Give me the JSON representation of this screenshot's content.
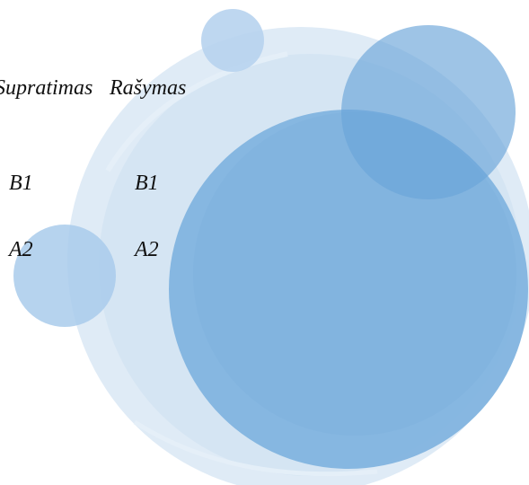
{
  "header": {
    "col1": "Supratimas",
    "col2": "Rašymas"
  },
  "rows": [
    {
      "col1": "B1",
      "col2": "B1"
    },
    {
      "col1": "A2",
      "col2": "A2"
    }
  ],
  "colors": {
    "bubble_pale": "#d6e5f3",
    "bubble_light": "#b6d3ee",
    "bubble_mid": "#86b6e0",
    "bubble_dark": "#5e9bd3",
    "text": "#111111"
  }
}
